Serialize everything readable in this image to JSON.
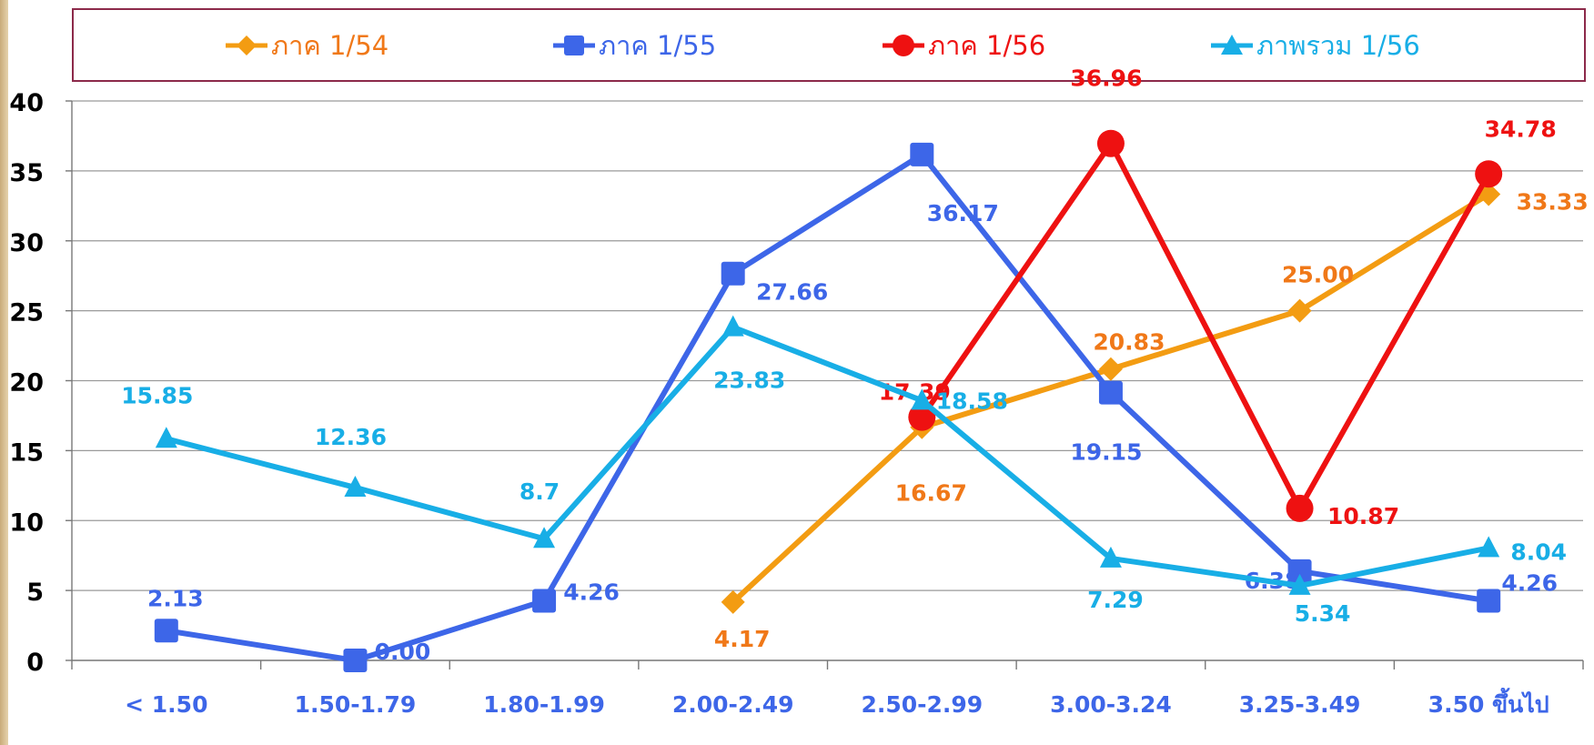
{
  "chart_data": {
    "type": "line",
    "categories": [
      "< 1.50",
      "1.50-1.79",
      "1.80-1.99",
      "2.00-2.49",
      "2.50-2.99",
      "3.00-3.24",
      "3.25-3.49",
      "3.50 ขึ้นไป"
    ],
    "y_ticks": [
      "0",
      "5",
      "10",
      "15",
      "20",
      "25",
      "30",
      "35",
      "40"
    ],
    "ylim": [
      0,
      40
    ],
    "grid": true,
    "legend_position": "top",
    "series": [
      {
        "name": "ภาค 1/54",
        "color": "#f39c12",
        "label_color": "#f07818",
        "marker": "diamond",
        "values": [
          null,
          null,
          null,
          4.17,
          16.67,
          20.83,
          25.0,
          33.33
        ],
        "labels": [
          null,
          null,
          null,
          "4.17",
          "16.67",
          "20.83",
          "25.00",
          "33.33"
        ]
      },
      {
        "name": "ภาค 1/55",
        "color": "#3d66e8",
        "label_color": "#3d66e8",
        "marker": "square",
        "values": [
          2.13,
          0.0,
          4.26,
          27.66,
          36.17,
          19.15,
          6.38,
          4.26
        ],
        "labels": [
          "2.13",
          "0.00",
          "4.26",
          "27.66",
          "36.17",
          "19.15",
          "6.38",
          "4.26"
        ]
      },
      {
        "name": "ภาค 1/56",
        "color": "#ee1111",
        "label_color": "#ee1111",
        "marker": "circle",
        "values": [
          null,
          null,
          null,
          null,
          17.39,
          36.96,
          10.87,
          34.78
        ],
        "labels": [
          null,
          null,
          null,
          null,
          "17.39",
          "36.96",
          "10.87",
          "34.78"
        ]
      },
      {
        "name": "ภาพรวม 1/56",
        "color": "#18aee6",
        "label_color": "#18aee6",
        "marker": "triangle",
        "values": [
          15.85,
          12.36,
          8.7,
          23.83,
          18.58,
          7.29,
          5.34,
          8.04
        ],
        "labels": [
          "15.85",
          "12.36",
          "8.7",
          "23.83",
          "18.58",
          "7.29",
          "5.34",
          "8.04"
        ]
      }
    ]
  }
}
